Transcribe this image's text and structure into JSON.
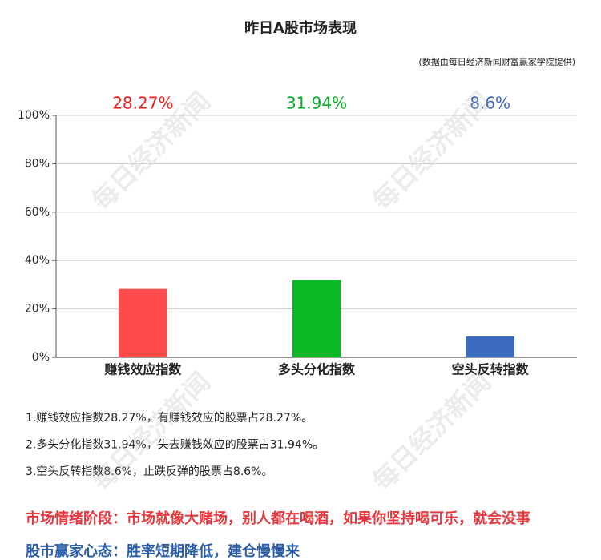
{
  "chart_data": {
    "type": "bar",
    "title": "昨日A股市场表现",
    "subtitle": "(数据由每日经济新闻财富赢家学院提供)",
    "categories": [
      "赚钱效应指数",
      "多头分化指数",
      "空头反转指数"
    ],
    "values": [
      28.27,
      31.94,
      8.6
    ],
    "value_labels": [
      "28.27%",
      "31.94%",
      "8.6%"
    ],
    "colors": [
      "#ff4b4b",
      "#08b825",
      "#3a6bbf"
    ],
    "value_label_colors": [
      "#f01c1c",
      "#0aab2a",
      "#3a64b0"
    ],
    "ylim": [
      0,
      100
    ],
    "yticks": [
      {
        "value": 0,
        "label": "0%"
      },
      {
        "value": 20,
        "label": "20%"
      },
      {
        "value": 40,
        "label": "40%"
      },
      {
        "value": 60,
        "label": "60%"
      },
      {
        "value": 80,
        "label": "80%"
      },
      {
        "value": 100,
        "label": "100%"
      }
    ],
    "grid": true
  },
  "watermark": "每日经济新闻",
  "notes": [
    "1.赚钱效应指数28.27%，有赚钱效应的股票占28.27%。",
    "2.多头分化指数31.94%，失去赚钱效应的股票占31.94%。",
    "3.空头反转指数8.6%，止跌反弹的股票占8.6%。"
  ],
  "footer": [
    {
      "text": "市场情绪阶段：市场就像大赌场，别人都在喝酒，如果你坚持喝可乐，就会没事",
      "color": "#e8383d"
    },
    {
      "text": "股市赢家心态：胜率短期降低，建仓慢慢来",
      "color": "#2a5caa"
    }
  ]
}
